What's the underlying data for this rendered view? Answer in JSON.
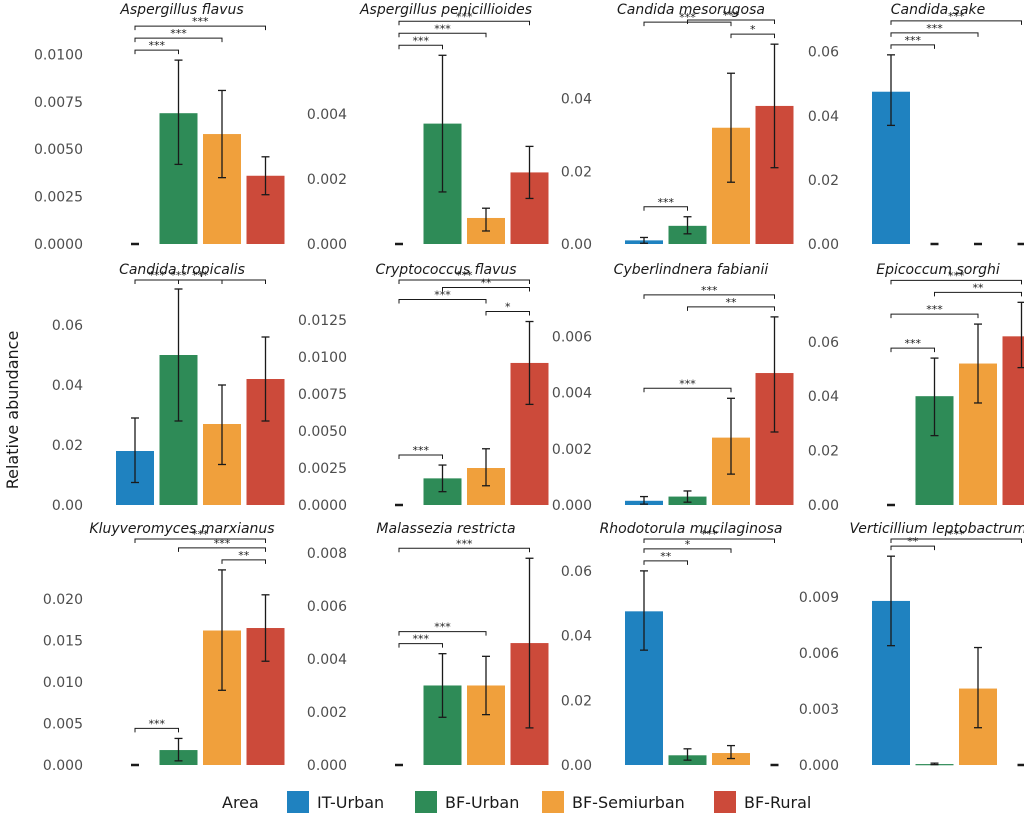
{
  "chart_data": {
    "type": "bar",
    "ylabel": "Relative abundance",
    "legend": {
      "title": "Area",
      "position": "bottom",
      "entries": [
        {
          "label": "IT-Urban",
          "color": "#1f82c0"
        },
        {
          "label": "BF-Urban",
          "color": "#2e8b57"
        },
        {
          "label": "BF-Semiurban",
          "color": "#f0a03c"
        },
        {
          "label": "BF-Rural",
          "color": "#cc4a3a"
        }
      ]
    },
    "categories": [
      "IT-Urban",
      "BF-Urban",
      "BF-Semiurban",
      "BF-Rural"
    ],
    "panels": [
      {
        "title": "Aspergillus flavus",
        "ylim": [
          0,
          0.0115
        ],
        "yticks": [
          {
            "v": 0,
            "label": "0.0000"
          },
          {
            "v": 0.0025,
            "label": "0.0025"
          },
          {
            "v": 0.005,
            "label": "0.0050"
          },
          {
            "v": 0.0075,
            "label": "0.0075"
          },
          {
            "v": 0.01,
            "label": "0.0100"
          }
        ],
        "values": [
          0,
          0.0069,
          0.0058,
          0.0036
        ],
        "err_low": [
          0,
          0.0042,
          0.0035,
          0.0026
        ],
        "err_high": [
          0,
          0.0097,
          0.0081,
          0.0046
        ],
        "sig": [
          {
            "from": 0,
            "to": 1,
            "label": "***"
          },
          {
            "from": 0,
            "to": 2,
            "label": "***"
          },
          {
            "from": 0,
            "to": 3,
            "label": "***"
          }
        ]
      },
      {
        "title": "Aspergillus penicillioides",
        "ylim": [
          0,
          0.0067
        ],
        "yticks": [
          {
            "v": 0,
            "label": "0.000"
          },
          {
            "v": 0.002,
            "label": "0.002"
          },
          {
            "v": 0.004,
            "label": "0.004"
          }
        ],
        "values": [
          0,
          0.0037,
          0.0008,
          0.0022
        ],
        "err_low": [
          0,
          0.0016,
          0.0004,
          0.0014
        ],
        "err_high": [
          0,
          0.0058,
          0.0011,
          0.003
        ],
        "sig": [
          {
            "from": 0,
            "to": 1,
            "label": "***"
          },
          {
            "from": 0,
            "to": 2,
            "label": "***"
          },
          {
            "from": 0,
            "to": 3,
            "label": "***"
          }
        ]
      },
      {
        "title": "Candida mesorugosa",
        "ylim": [
          0,
          0.06
        ],
        "yticks": [
          {
            "v": 0,
            "label": "0.00"
          },
          {
            "v": 0.02,
            "label": "0.02"
          },
          {
            "v": 0.04,
            "label": "0.04"
          }
        ],
        "values": [
          0.001,
          0.005,
          0.032,
          0.038
        ],
        "err_low": [
          0.0002,
          0.0028,
          0.017,
          0.021
        ],
        "err_high": [
          0.0018,
          0.0075,
          0.047,
          0.055
        ],
        "sig": [
          {
            "from": 0,
            "to": 1,
            "label": "***"
          },
          {
            "from": 0,
            "to": 2,
            "label": "***"
          },
          {
            "from": 1,
            "to": 3,
            "label": "***"
          },
          {
            "from": 2,
            "to": 3,
            "label": "*"
          }
        ]
      },
      {
        "title": "Candida sake",
        "ylim": [
          0,
          0.068
        ],
        "yticks": [
          {
            "v": 0,
            "label": "0.00"
          },
          {
            "v": 0.02,
            "label": "0.02"
          },
          {
            "v": 0.04,
            "label": "0.04"
          },
          {
            "v": 0.06,
            "label": "0.06"
          }
        ],
        "values": [
          0.0475,
          0,
          0,
          0
        ],
        "err_low": [
          0.037,
          0,
          0,
          0
        ],
        "err_high": [
          0.059,
          0,
          0,
          0
        ],
        "sig": [
          {
            "from": 0,
            "to": 1,
            "label": "***"
          },
          {
            "from": 0,
            "to": 2,
            "label": "***"
          },
          {
            "from": 0,
            "to": 3,
            "label": "***"
          }
        ]
      },
      {
        "title": "Candida tropicalis",
        "ylim": [
          0,
          0.073
        ],
        "yticks": [
          {
            "v": 0,
            "label": "0.00"
          },
          {
            "v": 0.02,
            "label": "0.02"
          },
          {
            "v": 0.04,
            "label": "0.04"
          },
          {
            "v": 0.06,
            "label": "0.06"
          }
        ],
        "values": [
          0.018,
          0.05,
          0.027,
          0.042
        ],
        "err_low": [
          0.0075,
          0.028,
          0.0135,
          0.028
        ],
        "err_high": [
          0.029,
          0.072,
          0.04,
          0.056
        ],
        "sig": [
          {
            "from": 0,
            "to": 1,
            "label": "***"
          },
          {
            "from": 0,
            "to": 2,
            "label": "***"
          },
          {
            "from": 0,
            "to": 3,
            "label": "***"
          }
        ]
      },
      {
        "title": "Cryptococcus flavus",
        "ylim": [
          0,
          0.0148
        ],
        "yticks": [
          {
            "v": 0,
            "label": "0.0000"
          },
          {
            "v": 0.0025,
            "label": "0.0025"
          },
          {
            "v": 0.005,
            "label": "0.0050"
          },
          {
            "v": 0.0075,
            "label": "0.0075"
          },
          {
            "v": 0.01,
            "label": "0.0100"
          },
          {
            "v": 0.0125,
            "label": "0.0125"
          }
        ],
        "values": [
          0,
          0.0018,
          0.0025,
          0.0096
        ],
        "err_low": [
          0,
          0.0009,
          0.0013,
          0.0068
        ],
        "err_high": [
          0,
          0.0027,
          0.0038,
          0.0124
        ],
        "sig": [
          {
            "from": 0,
            "to": 1,
            "label": "***"
          },
          {
            "from": 0,
            "to": 2,
            "label": "***"
          },
          {
            "from": 0,
            "to": 3,
            "label": "***"
          },
          {
            "from": 1,
            "to": 3,
            "label": "**"
          },
          {
            "from": 2,
            "to": 3,
            "label": "*"
          }
        ]
      },
      {
        "title": "Cyberlindnera fabianii",
        "ylim": [
          0,
          0.0078
        ],
        "yticks": [
          {
            "v": 0,
            "label": "0.000"
          },
          {
            "v": 0.002,
            "label": "0.002"
          },
          {
            "v": 0.004,
            "label": "0.004"
          },
          {
            "v": 0.006,
            "label": "0.006"
          }
        ],
        "values": [
          0.00015,
          0.0003,
          0.0024,
          0.0047
        ],
        "err_low": [
          3e-05,
          0.0001,
          0.0011,
          0.0026
        ],
        "err_high": [
          0.0003,
          0.0005,
          0.0038,
          0.0067
        ],
        "sig": [
          {
            "from": 0,
            "to": 2,
            "label": "***"
          },
          {
            "from": 0,
            "to": 3,
            "label": "***"
          },
          {
            "from": 1,
            "to": 3,
            "label": "**"
          }
        ]
      },
      {
        "title": "Epicoccum sorghi",
        "ylim": [
          0,
          0.0805
        ],
        "yticks": [
          {
            "v": 0,
            "label": "0.00"
          },
          {
            "v": 0.02,
            "label": "0.02"
          },
          {
            "v": 0.04,
            "label": "0.04"
          },
          {
            "v": 0.06,
            "label": "0.06"
          }
        ],
        "values": [
          0,
          0.04,
          0.052,
          0.062
        ],
        "err_low": [
          0,
          0.0255,
          0.0375,
          0.0505
        ],
        "err_high": [
          0,
          0.054,
          0.0665,
          0.0745
        ],
        "sig": [
          {
            "from": 0,
            "to": 1,
            "label": "***"
          },
          {
            "from": 0,
            "to": 2,
            "label": "***"
          },
          {
            "from": 1,
            "to": 3,
            "label": "**"
          },
          {
            "from": 0,
            "to": 3,
            "label": "***"
          }
        ]
      },
      {
        "title": "Kluyveromyces marxianus",
        "ylim": [
          0,
          0.0265
        ],
        "yticks": [
          {
            "v": 0,
            "label": "0.000"
          },
          {
            "v": 0.005,
            "label": "0.005"
          },
          {
            "v": 0.01,
            "label": "0.010"
          },
          {
            "v": 0.015,
            "label": "0.015"
          },
          {
            "v": 0.02,
            "label": "0.020"
          }
        ],
        "values": [
          0,
          0.0018,
          0.0162,
          0.0165
        ],
        "err_low": [
          0,
          0.0005,
          0.009,
          0.0125
        ],
        "err_high": [
          0,
          0.0032,
          0.0235,
          0.0205
        ],
        "sig": [
          {
            "from": 0,
            "to": 1,
            "label": "***"
          },
          {
            "from": 0,
            "to": 3,
            "label": "***"
          },
          {
            "from": 1,
            "to": 3,
            "label": "***"
          },
          {
            "from": 2,
            "to": 3,
            "label": "**"
          }
        ]
      },
      {
        "title": "Malassezia restricta",
        "ylim": [
          0,
          0.0083
        ],
        "yticks": [
          {
            "v": 0,
            "label": "0.000"
          },
          {
            "v": 0.002,
            "label": "0.002"
          },
          {
            "v": 0.004,
            "label": "0.004"
          },
          {
            "v": 0.006,
            "label": "0.006"
          },
          {
            "v": 0.008,
            "label": "0.008"
          }
        ],
        "values": [
          0,
          0.003,
          0.003,
          0.0046
        ],
        "err_low": [
          0,
          0.0018,
          0.0019,
          0.0014
        ],
        "err_high": [
          0,
          0.0042,
          0.0041,
          0.0078
        ],
        "sig": [
          {
            "from": 0,
            "to": 1,
            "label": "***"
          },
          {
            "from": 0,
            "to": 2,
            "label": "***"
          },
          {
            "from": 0,
            "to": 3,
            "label": "***"
          }
        ]
      },
      {
        "title": "Rhodotorula mucilaginosa",
        "ylim": [
          0,
          0.068
        ],
        "yticks": [
          {
            "v": 0,
            "label": "0.00"
          },
          {
            "v": 0.02,
            "label": "0.02"
          },
          {
            "v": 0.04,
            "label": "0.04"
          },
          {
            "v": 0.06,
            "label": "0.06"
          }
        ],
        "values": [
          0.0475,
          0.003,
          0.0037,
          0
        ],
        "err_low": [
          0.0355,
          0.0015,
          0.002,
          0
        ],
        "err_high": [
          0.06,
          0.005,
          0.006,
          0
        ],
        "sig": [
          {
            "from": 0,
            "to": 1,
            "label": "**"
          },
          {
            "from": 0,
            "to": 2,
            "label": "*"
          },
          {
            "from": 0,
            "to": 3,
            "label": "***"
          }
        ]
      },
      {
        "title": "Verticillium leptobactrum",
        "ylim": [
          0,
          0.0118
        ],
        "yticks": [
          {
            "v": 0,
            "label": "0.000"
          },
          {
            "v": 0.003,
            "label": "0.003"
          },
          {
            "v": 0.006,
            "label": "0.006"
          },
          {
            "v": 0.009,
            "label": "0.009"
          }
        ],
        "values": [
          0.0088,
          5e-05,
          0.0041,
          0
        ],
        "err_low": [
          0.0064,
          2e-05,
          0.002,
          0
        ],
        "err_high": [
          0.0112,
          0.0001,
          0.0063,
          0
        ],
        "sig": [
          {
            "from": 0,
            "to": 1,
            "label": "**"
          },
          {
            "from": 0,
            "to": 3,
            "label": "***"
          }
        ]
      }
    ]
  }
}
